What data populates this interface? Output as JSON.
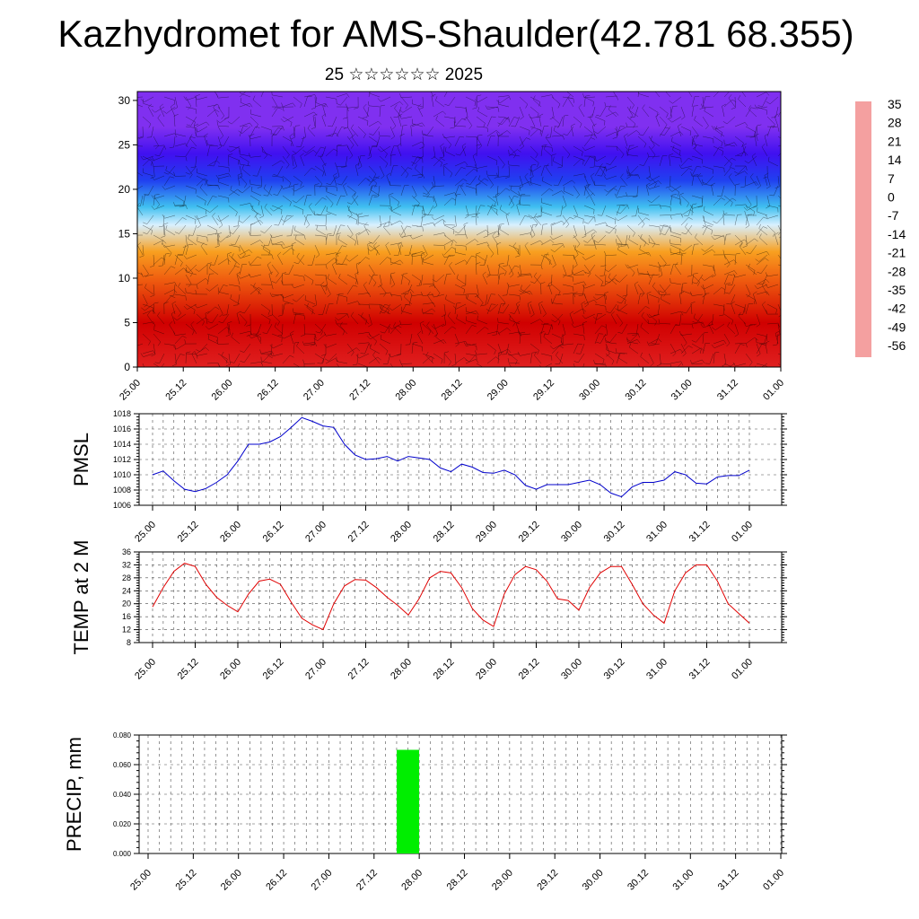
{
  "page": {
    "title": "Kazhydromet for AMS-Shaulder(42.781 68.355)",
    "subtitle": "25 ☆☆☆☆☆☆ 2025"
  },
  "colors": {
    "pmsl_line": "#0000cc",
    "temp_line": "#e00000",
    "precip_bar": "#00ee00",
    "grid": "#000000"
  },
  "chart_data": [
    {
      "type": "heatmap",
      "name": "cross-section",
      "xlabel": "",
      "ylabel": "",
      "x_ticks": [
        "25.00",
        "25.12",
        "26.00",
        "26.12",
        "27.00",
        "27.12",
        "28.00",
        "28.12",
        "29.00",
        "29.12",
        "30.00",
        "30.12",
        "31.00",
        "31.12",
        "01.00"
      ],
      "y_ticks": [
        0,
        5,
        10,
        15,
        20,
        25,
        30
      ],
      "ylim": [
        0,
        31
      ],
      "colorbar": {
        "labels": [
          "35",
          "28",
          "21",
          "14",
          "7",
          "0",
          "-7",
          "-14",
          "-21",
          "-28",
          "-35",
          "-42",
          "-49",
          "-56"
        ],
        "colors": [
          "#f4a0a0",
          "#e02020",
          "#d00000",
          "#e83000",
          "#f06010",
          "#f8a020",
          "#fff060",
          "#d8f0ff",
          "#40c0f0",
          "#2090ff",
          "#2040f0",
          "#1010e0",
          "#4010f0",
          "#8030f0"
        ]
      },
      "vertical_profile": [
        {
          "h": 0,
          "t": 30
        },
        {
          "h": 5,
          "t": 24
        },
        {
          "h": 10,
          "t": 10
        },
        {
          "h": 13,
          "t": 0
        },
        {
          "h": 16,
          "t": -12
        },
        {
          "h": 18,
          "t": -22
        },
        {
          "h": 21,
          "t": -36
        },
        {
          "h": 24,
          "t": -50
        },
        {
          "h": 27,
          "t": -58
        },
        {
          "h": 31,
          "t": -58
        }
      ],
      "overlay": "wind barbs"
    },
    {
      "type": "line",
      "name": "PMSL",
      "ylabel": "PMSL",
      "ylim": [
        1006,
        1018
      ],
      "y_ticks": [
        1006,
        1008,
        1010,
        1012,
        1014,
        1016,
        1018
      ],
      "x_ticks": [
        "25.00",
        "25.12",
        "26.00",
        "26.12",
        "27.00",
        "27.12",
        "28.00",
        "28.12",
        "29.00",
        "29.12",
        "30.00",
        "30.12",
        "31.00",
        "31.12",
        "01.00"
      ],
      "x_step_hours": 3,
      "values": [
        1010.0,
        1010.5,
        1009.2,
        1008.1,
        1007.8,
        1008.2,
        1009.0,
        1010.0,
        1011.8,
        1014.0,
        1014.0,
        1014.3,
        1015.0,
        1016.2,
        1017.5,
        1017.0,
        1016.4,
        1016.2,
        1014.0,
        1012.6,
        1012.0,
        1012.1,
        1012.4,
        1011.8,
        1012.4,
        1012.2,
        1012.0,
        1010.9,
        1010.4,
        1011.4,
        1011.0,
        1010.3,
        1010.2,
        1010.6,
        1010.0,
        1008.6,
        1008.1,
        1008.7,
        1008.7,
        1008.7,
        1009.0,
        1009.3,
        1008.7,
        1007.6,
        1007.1,
        1008.4,
        1009.0,
        1009.0,
        1009.3,
        1010.4,
        1010.0,
        1008.9,
        1008.8,
        1009.7,
        1009.9,
        1009.9,
        1010.6
      ]
    },
    {
      "type": "line",
      "name": "TEMP at 2 M",
      "ylabel": "TEMP at 2 M",
      "ylim": [
        8,
        36
      ],
      "y_ticks": [
        8,
        12,
        16,
        20,
        24,
        28,
        32,
        36
      ],
      "x_ticks": [
        "25.00",
        "25.12",
        "26.00",
        "26.12",
        "27.00",
        "27.12",
        "28.00",
        "28.12",
        "29.00",
        "29.12",
        "30.00",
        "30.12",
        "31.00",
        "31.12",
        "01.00"
      ],
      "x_step_hours": 3,
      "values": [
        19,
        25,
        30,
        32.5,
        31.5,
        26,
        22,
        19.5,
        17.5,
        23,
        27,
        27.6,
        26,
        20.5,
        15.5,
        13.5,
        12,
        20,
        25.5,
        27.5,
        27.3,
        25,
        22,
        19.5,
        16.5,
        21.5,
        28,
        30,
        29.5,
        25,
        18.5,
        15,
        13,
        23,
        29,
        31.5,
        30.5,
        27,
        21.5,
        21,
        18,
        25,
        29.5,
        31.5,
        31.5,
        26,
        20,
        16.5,
        14,
        24,
        29.5,
        32,
        32,
        27,
        20,
        17,
        14
      ]
    },
    {
      "type": "bar",
      "name": "PRECIP",
      "ylabel": "PRECIP, mm",
      "ylim": [
        0,
        0.08
      ],
      "y_ticks": [
        "0.000",
        "0.020",
        "0.040",
        "0.060",
        "0.080"
      ],
      "x_ticks": [
        "25.00",
        "25.12",
        "26.00",
        "26.12",
        "27.00",
        "27.12",
        "28.00",
        "28.12",
        "29.00",
        "29.12",
        "30.00",
        "30.12",
        "31.00",
        "31.12",
        "01.00"
      ],
      "bars": [
        {
          "x": "27.21",
          "value": 0.07
        }
      ]
    }
  ]
}
